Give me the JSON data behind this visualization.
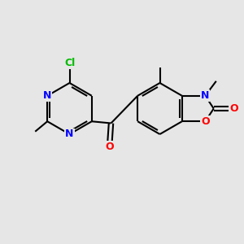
{
  "background_color": "#e6e6e6",
  "bond_color": "#000000",
  "nitrogen_color": "#0000ff",
  "oxygen_color": "#ff0000",
  "chlorine_color": "#00bb00",
  "line_width": 1.5,
  "figsize": [
    3.0,
    3.0
  ],
  "dpi": 100,
  "xlim": [
    0,
    10
  ],
  "ylim": [
    0,
    10
  ]
}
